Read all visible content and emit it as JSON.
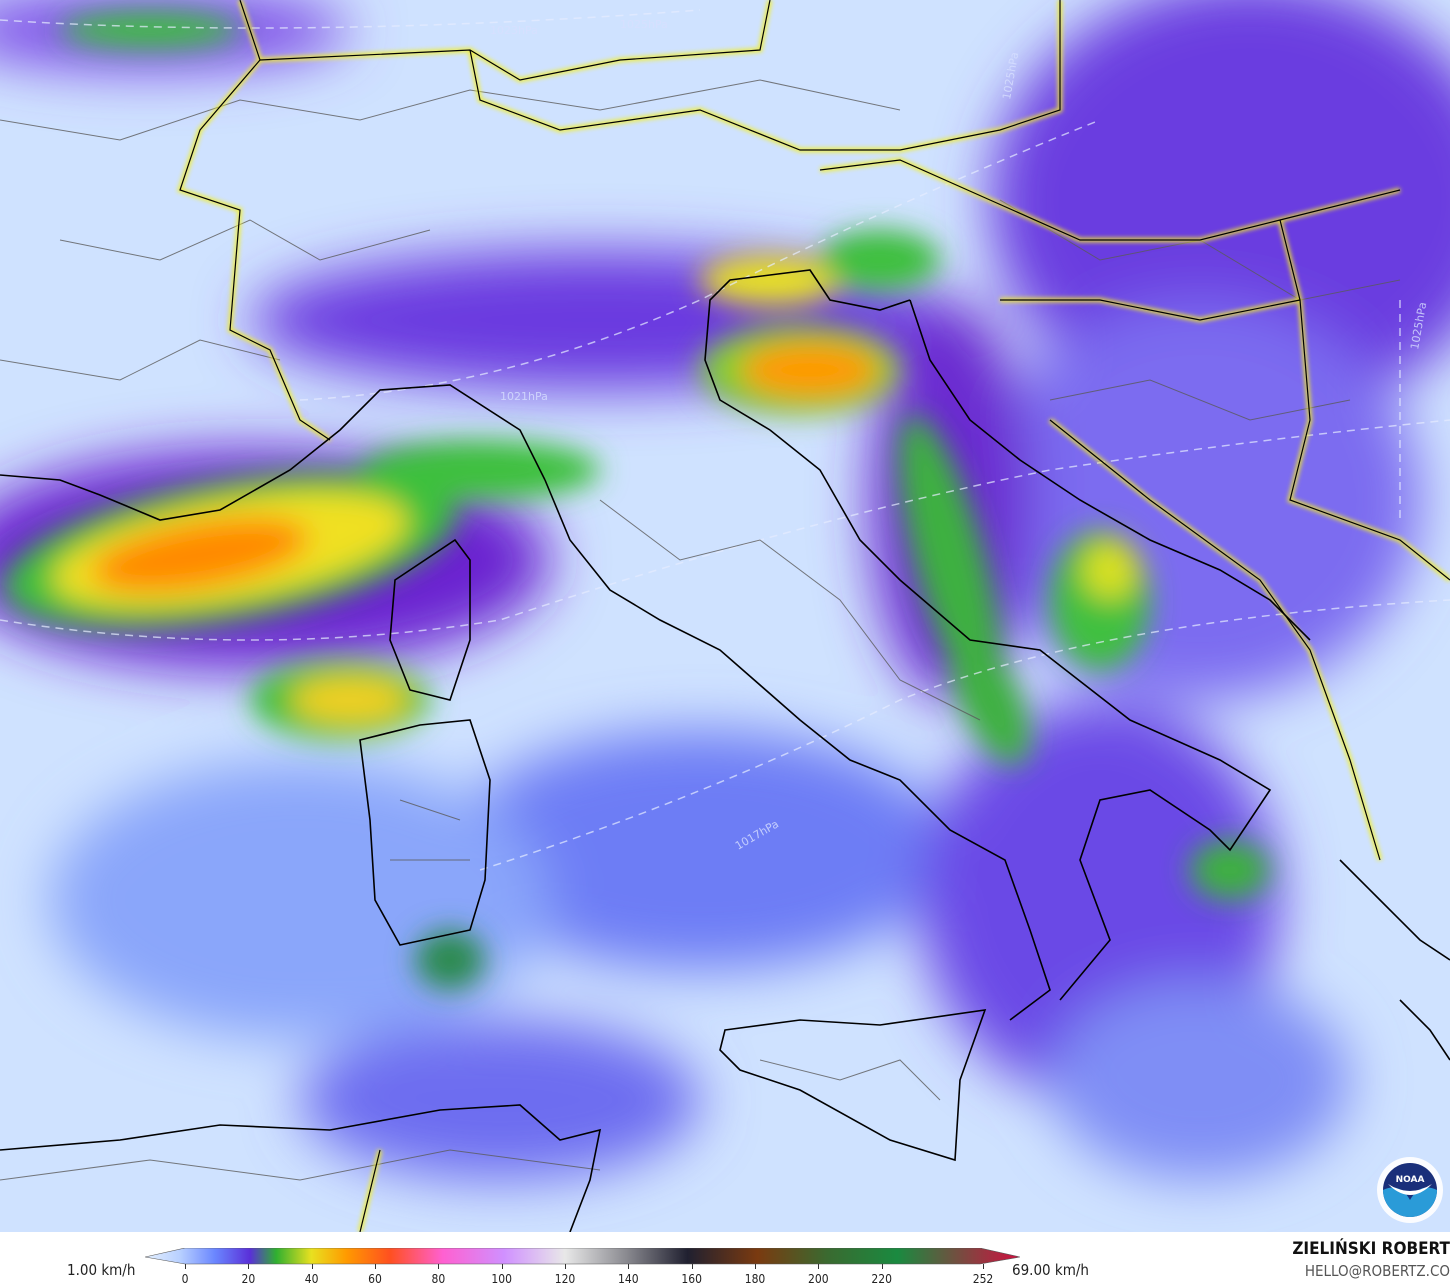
{
  "map": {
    "variable": "wind speed",
    "isobar_labels": [
      "1023hPa",
      "1025hPa",
      "1025hPa",
      "1021hPa",
      "1017hPa",
      "1025hPa"
    ],
    "logo_text": "NOAA",
    "colors": {
      "background": "#cfe2ff",
      "border": "#f0f020",
      "coastline": "#000000",
      "admin": "#555555"
    }
  },
  "legend": {
    "min_label": "1.00 km/h",
    "max_label": "69.00 km/h",
    "ticks": [
      "0",
      "20",
      "40",
      "60",
      "80",
      "100",
      "120",
      "140",
      "160",
      "180",
      "200",
      "220",
      "252"
    ],
    "range": [
      0,
      252
    ]
  },
  "credit": {
    "author": "ZIELIŃSKI ROBERT",
    "email": "HELLO@ROBERTZ.CO"
  }
}
